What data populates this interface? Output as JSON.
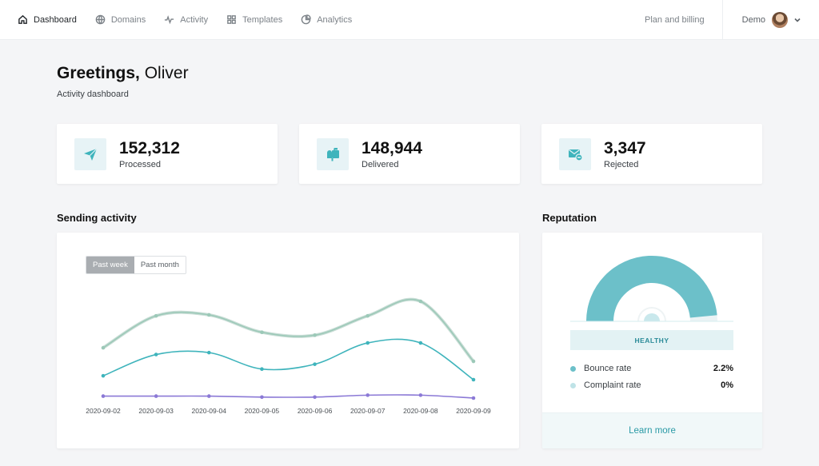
{
  "nav": {
    "items": [
      {
        "label": "Dashboard",
        "icon": "home-icon",
        "active": true
      },
      {
        "label": "Domains",
        "icon": "globe-icon"
      },
      {
        "label": "Activity",
        "icon": "activity-icon"
      },
      {
        "label": "Templates",
        "icon": "grid-icon"
      },
      {
        "label": "Analytics",
        "icon": "pie-chart-icon"
      }
    ],
    "billing": "Plan and billing",
    "user": "Demo"
  },
  "header": {
    "greeting_bold": "Greetings,",
    "greeting_name": "Oliver",
    "subtitle": "Activity dashboard"
  },
  "stats": [
    {
      "value": "152,312",
      "label": "Processed",
      "icon": "paper-plane-icon"
    },
    {
      "value": "148,944",
      "label": "Delivered",
      "icon": "mailbox-icon"
    },
    {
      "value": "3,347",
      "label": "Rejected",
      "icon": "envelope-minus-icon"
    }
  ],
  "sending": {
    "title": "Sending activity",
    "tabs": [
      "Past week",
      "Past month"
    ],
    "active_tab": 0
  },
  "reputation": {
    "title": "Reputation",
    "status": "HEALTHY",
    "metrics": [
      {
        "label": "Bounce rate",
        "value": "2.2%",
        "color": "#6cc0c9"
      },
      {
        "label": "Complaint rate",
        "value": "0%",
        "color": "#bfe3e7"
      }
    ],
    "learn_more": "Learn more",
    "gauge_fraction": 0.97
  },
  "colors": {
    "accent": "#6cc0c9",
    "processed": "#9cc9b8",
    "delivered": "#3fb4bc",
    "rejected": "#8b79d6"
  },
  "chart_data": {
    "type": "line",
    "x": [
      "2020-09-02",
      "2020-09-03",
      "2020-09-04",
      "2020-09-05",
      "2020-09-06",
      "2020-09-07",
      "2020-09-08",
      "2020-09-09"
    ],
    "ylim": [
      0,
      100
    ],
    "grid": false,
    "series": [
      {
        "key": "processed",
        "values": [
          52,
          85,
          86,
          68,
          65,
          85,
          100,
          38
        ]
      },
      {
        "key": "delivered",
        "values": [
          23,
          45,
          47,
          30,
          35,
          57,
          57,
          19
        ]
      },
      {
        "key": "rejected",
        "values": [
          2,
          2,
          2,
          1,
          1,
          3,
          3,
          0
        ]
      }
    ]
  }
}
